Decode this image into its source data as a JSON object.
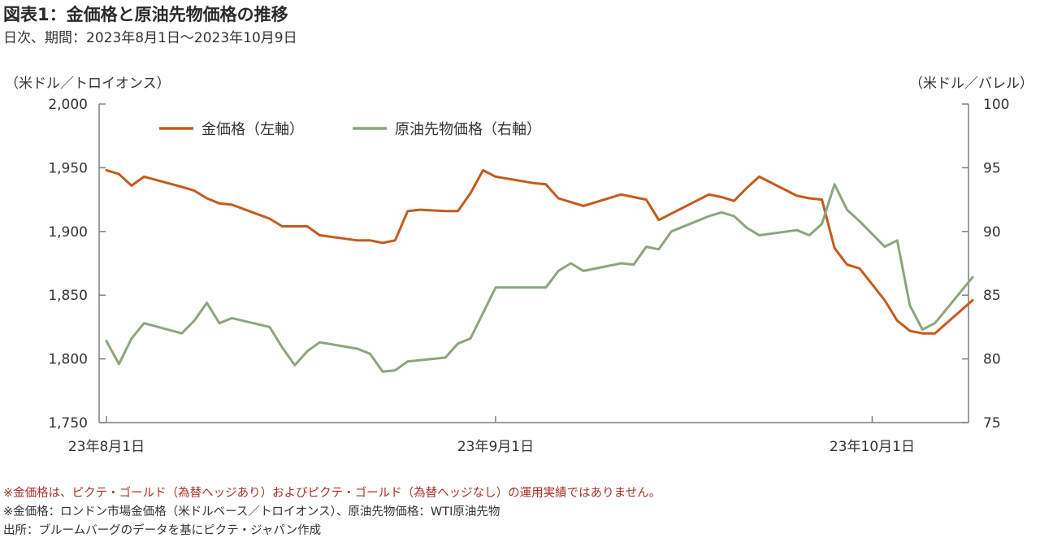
{
  "header": {
    "title": "図表1：金価格と原油先物価格の推移",
    "subtitle": "日次、期間：2023年8月1日～2023年10月9日"
  },
  "axes": {
    "left_unit": "（米ドル／トロイオンス）",
    "right_unit": "（米ドル／バレル）"
  },
  "colors": {
    "gold": "#c55a1d",
    "oil": "#8da67d",
    "axis": "#7f7f7f"
  },
  "chart_data": {
    "type": "line",
    "grid": false,
    "legend_position": "top-left",
    "y_left": {
      "range": [
        1750,
        2000
      ],
      "ticks": [
        1750,
        1800,
        1850,
        1900,
        1950,
        2000
      ],
      "tick_labels": [
        "1,750",
        "1,800",
        "1,850",
        "1,900",
        "1,950",
        "2,000"
      ]
    },
    "y_right": {
      "range": [
        75,
        100
      ],
      "ticks": [
        75,
        80,
        85,
        90,
        95,
        100
      ],
      "tick_labels": [
        "75",
        "80",
        "85",
        "90",
        "95",
        "100"
      ]
    },
    "x": {
      "range": [
        "2023-08-01",
        "2023-10-09"
      ],
      "ticks": [
        "2023-08-01",
        "2023-09-01",
        "2023-10-01"
      ],
      "tick_labels": [
        "23年8月1日",
        "23年9月1日",
        "23年10月1日"
      ]
    },
    "series": [
      {
        "name": "金価格（左軸）",
        "axis": "left",
        "color": "#c55a1d",
        "points": [
          [
            "2023-08-01",
            1948
          ],
          [
            "2023-08-02",
            1945
          ],
          [
            "2023-08-03",
            1936
          ],
          [
            "2023-08-04",
            1943
          ],
          [
            "2023-08-07",
            1935
          ],
          [
            "2023-08-08",
            1932
          ],
          [
            "2023-08-09",
            1926
          ],
          [
            "2023-08-10",
            1922
          ],
          [
            "2023-08-11",
            1921
          ],
          [
            "2023-08-14",
            1910
          ],
          [
            "2023-08-15",
            1904
          ],
          [
            "2023-08-16",
            1904
          ],
          [
            "2023-08-17",
            1904
          ],
          [
            "2023-08-18",
            1897
          ],
          [
            "2023-08-21",
            1893
          ],
          [
            "2023-08-22",
            1893
          ],
          [
            "2023-08-23",
            1891
          ],
          [
            "2023-08-24",
            1893
          ],
          [
            "2023-08-25",
            1916
          ],
          [
            "2023-08-26",
            1917
          ],
          [
            "2023-08-28",
            1916
          ],
          [
            "2023-08-29",
            1916
          ],
          [
            "2023-08-30",
            1930
          ],
          [
            "2023-08-31",
            1948
          ],
          [
            "2023-09-01",
            1943
          ],
          [
            "2023-09-04",
            1938
          ],
          [
            "2023-09-05",
            1937
          ],
          [
            "2023-09-06",
            1926
          ],
          [
            "2023-09-07",
            1923
          ],
          [
            "2023-09-08",
            1920
          ],
          [
            "2023-09-11",
            1929
          ],
          [
            "2023-09-12",
            1927
          ],
          [
            "2023-09-13",
            1925
          ],
          [
            "2023-09-14",
            1909
          ],
          [
            "2023-09-15",
            1914
          ],
          [
            "2023-09-18",
            1929
          ],
          [
            "2023-09-19",
            1927
          ],
          [
            "2023-09-20",
            1924
          ],
          [
            "2023-09-21",
            1934
          ],
          [
            "2023-09-22",
            1943
          ],
          [
            "2023-09-25",
            1928
          ],
          [
            "2023-09-26",
            1926
          ],
          [
            "2023-09-27",
            1925
          ],
          [
            "2023-09-28",
            1887
          ],
          [
            "2023-09-29",
            1874
          ],
          [
            "2023-09-30",
            1871
          ],
          [
            "2023-10-02",
            1846
          ],
          [
            "2023-10-03",
            1830
          ],
          [
            "2023-10-04",
            1822
          ],
          [
            "2023-10-05",
            1820
          ],
          [
            "2023-10-06",
            1820
          ],
          [
            "2023-10-09",
            1846
          ]
        ]
      },
      {
        "name": "原油先物価格（右軸）",
        "axis": "right",
        "color": "#8da67d",
        "points": [
          [
            "2023-08-01",
            81.4
          ],
          [
            "2023-08-02",
            79.6
          ],
          [
            "2023-08-03",
            81.6
          ],
          [
            "2023-08-04",
            82.8
          ],
          [
            "2023-08-07",
            82.0
          ],
          [
            "2023-08-08",
            83.0
          ],
          [
            "2023-08-09",
            84.4
          ],
          [
            "2023-08-10",
            82.8
          ],
          [
            "2023-08-11",
            83.2
          ],
          [
            "2023-08-14",
            82.5
          ],
          [
            "2023-08-15",
            80.9
          ],
          [
            "2023-08-16",
            79.5
          ],
          [
            "2023-08-17",
            80.6
          ],
          [
            "2023-08-18",
            81.3
          ],
          [
            "2023-08-21",
            80.8
          ],
          [
            "2023-08-22",
            80.4
          ],
          [
            "2023-08-23",
            79.0
          ],
          [
            "2023-08-24",
            79.1
          ],
          [
            "2023-08-25",
            79.8
          ],
          [
            "2023-08-28",
            80.1
          ],
          [
            "2023-08-29",
            81.2
          ],
          [
            "2023-08-30",
            81.6
          ],
          [
            "2023-08-31",
            83.6
          ],
          [
            "2023-09-01",
            85.6
          ],
          [
            "2023-09-05",
            85.6
          ],
          [
            "2023-09-06",
            86.9
          ],
          [
            "2023-09-07",
            87.5
          ],
          [
            "2023-09-08",
            86.9
          ],
          [
            "2023-09-11",
            87.5
          ],
          [
            "2023-09-12",
            87.4
          ],
          [
            "2023-09-13",
            88.8
          ],
          [
            "2023-09-14",
            88.6
          ],
          [
            "2023-09-15",
            90.0
          ],
          [
            "2023-09-18",
            91.2
          ],
          [
            "2023-09-19",
            91.5
          ],
          [
            "2023-09-20",
            91.2
          ],
          [
            "2023-09-21",
            90.3
          ],
          [
            "2023-09-22",
            89.7
          ],
          [
            "2023-09-25",
            90.1
          ],
          [
            "2023-09-26",
            89.7
          ],
          [
            "2023-09-27",
            90.6
          ],
          [
            "2023-09-28",
            93.7
          ],
          [
            "2023-09-29",
            91.7
          ],
          [
            "2023-09-30",
            90.8
          ],
          [
            "2023-10-02",
            88.8
          ],
          [
            "2023-10-03",
            89.3
          ],
          [
            "2023-10-04",
            84.2
          ],
          [
            "2023-10-05",
            82.3
          ],
          [
            "2023-10-06",
            82.8
          ],
          [
            "2023-10-09",
            86.4
          ]
        ]
      }
    ]
  },
  "notes": {
    "warning": "※金価格は、ピクテ・ゴールド（為替ヘッジあり）およびピクテ・ゴールド（為替ヘッジなし）の運用実績ではありません。",
    "definition": "※金価格：ロンドン市場金価格（米ドルベース／トロイオンス）、原油先物価格：WTI原油先物",
    "source": "出所：ブルームバーグのデータを基にピクテ・ジャパン作成"
  }
}
